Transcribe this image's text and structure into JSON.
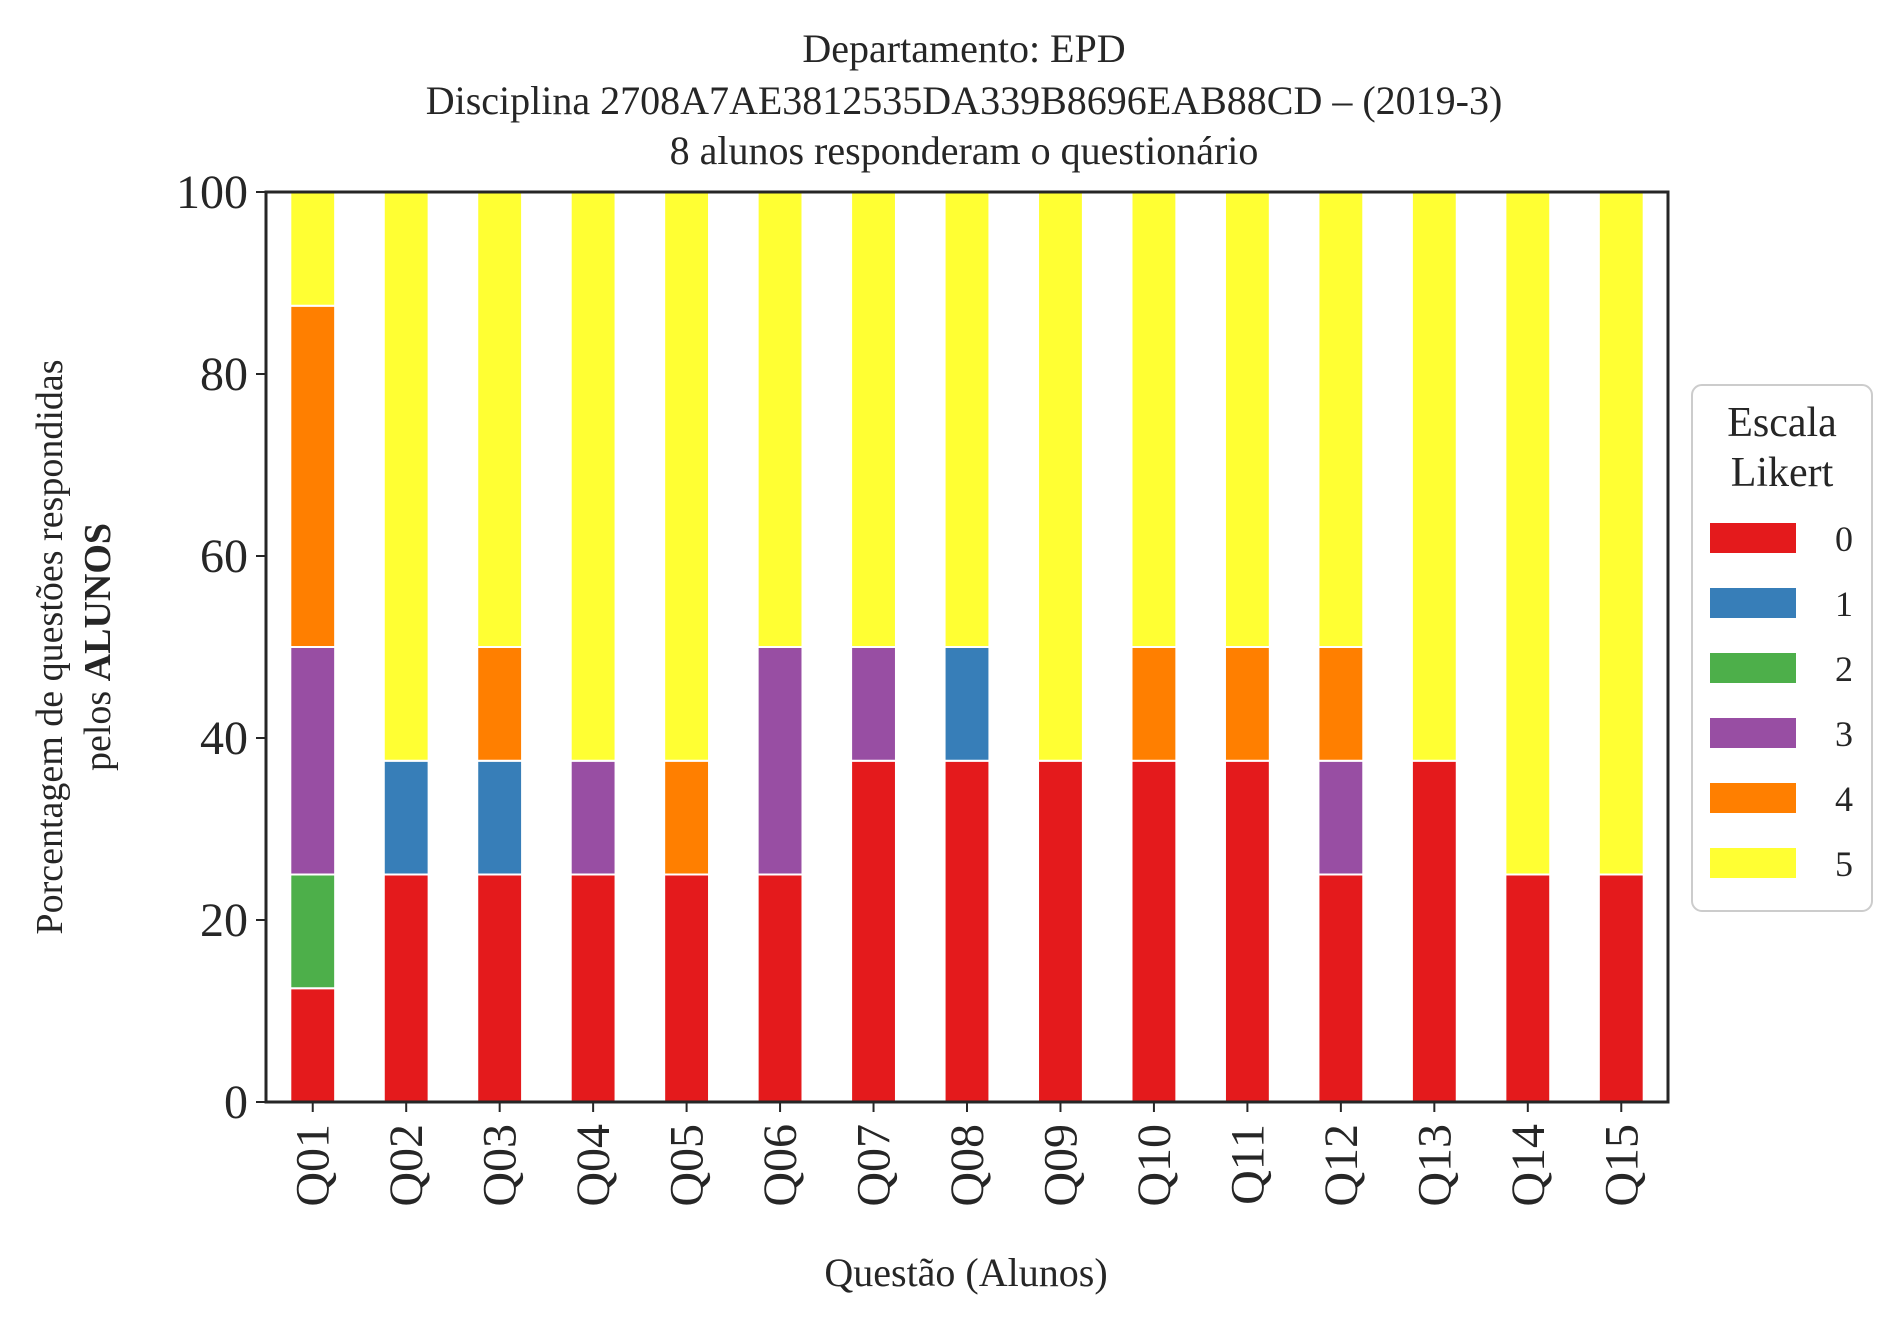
{
  "chart_data": {
    "type": "bar",
    "stacked": true,
    "title_lines": [
      "Departamento: EPD",
      "Disciplina 2708A7AE3812535DA339B8696EAB88CD – (2019-3)",
      "8 alunos responderam o questionário"
    ],
    "ylabel_line1": "Porcentagem de questões respondidas",
    "ylabel_line2_prefix": "pelos ",
    "ylabel_line2_bold": "ALUNOS",
    "xlabel": "Questão (Alunos)",
    "ylim": [
      0,
      100
    ],
    "yticks": [
      0,
      20,
      40,
      60,
      80,
      100
    ],
    "categories": [
      "Q01",
      "Q02",
      "Q03",
      "Q04",
      "Q05",
      "Q06",
      "Q07",
      "Q08",
      "Q09",
      "Q10",
      "Q11",
      "Q12",
      "Q13",
      "Q14",
      "Q15"
    ],
    "series": [
      {
        "name": "0",
        "color": "#e41a1c",
        "values": [
          12.5,
          25,
          25,
          25,
          25,
          25,
          37.5,
          37.5,
          37.5,
          37.5,
          37.5,
          25,
          37.5,
          25,
          25
        ]
      },
      {
        "name": "1",
        "color": "#377eb8",
        "values": [
          0,
          12.5,
          12.5,
          0,
          0,
          0,
          0,
          12.5,
          0,
          0,
          0,
          0,
          0,
          0,
          0
        ]
      },
      {
        "name": "2",
        "color": "#4daf4a",
        "values": [
          12.5,
          0,
          0,
          0,
          0,
          0,
          0,
          0,
          0,
          0,
          0,
          0,
          0,
          0,
          0
        ]
      },
      {
        "name": "3",
        "color": "#984ea3",
        "values": [
          25,
          0,
          0,
          12.5,
          0,
          25,
          12.5,
          0,
          0,
          0,
          0,
          12.5,
          0,
          0,
          0
        ]
      },
      {
        "name": "4",
        "color": "#ff7f00",
        "values": [
          37.5,
          0,
          12.5,
          0,
          12.5,
          0,
          0,
          0,
          0,
          12.5,
          12.5,
          12.5,
          0,
          0,
          0
        ]
      },
      {
        "name": "5",
        "color": "#ffff33",
        "values": [
          12.5,
          62.5,
          50,
          62.5,
          62.5,
          50,
          50,
          50,
          62.5,
          50,
          50,
          50,
          62.5,
          75,
          75
        ]
      }
    ],
    "legend": {
      "title_lines": [
        "Escala",
        "Likert"
      ],
      "placement": "right"
    },
    "grid": false
  }
}
